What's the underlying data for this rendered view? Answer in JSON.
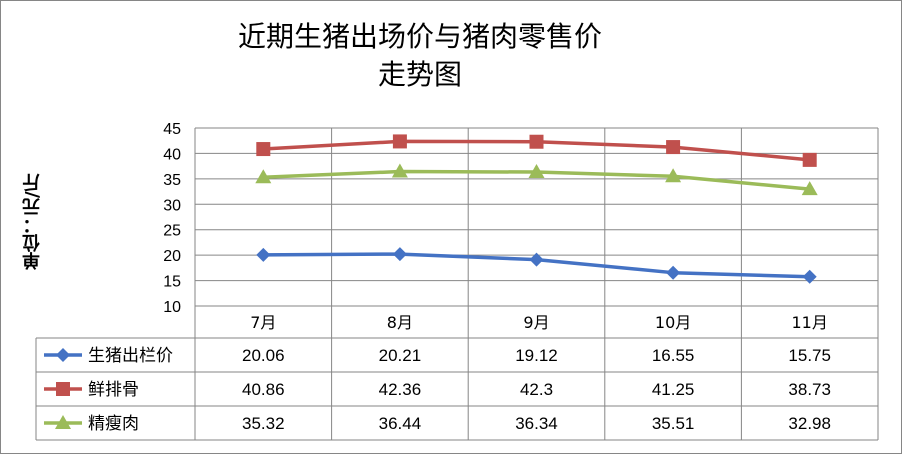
{
  "chart_data": {
    "type": "line",
    "title_lines": [
      "近期生猪出场价与猪肉零售价",
      "走势图"
    ],
    "ylabel": "单位：元/斤",
    "xlabel": "",
    "categories": [
      "7月",
      "8月",
      "9月",
      "10月",
      "11月"
    ],
    "ylim": [
      10,
      45
    ],
    "yticks": [
      10,
      15,
      20,
      25,
      30,
      35,
      40,
      45
    ],
    "grid": true,
    "legend": "data-table",
    "series": [
      {
        "name": "生猪出栏价",
        "values": [
          20.06,
          20.21,
          19.12,
          16.55,
          15.75
        ],
        "color": "#4472C4",
        "marker": "diamond"
      },
      {
        "name": "鲜排骨",
        "values": [
          40.86,
          42.36,
          42.3,
          41.25,
          38.73
        ],
        "color": "#C0504D",
        "marker": "square"
      },
      {
        "name": "精瘦肉",
        "values": [
          35.32,
          36.44,
          36.34,
          35.51,
          32.98
        ],
        "color": "#9BBB59",
        "marker": "triangle"
      }
    ]
  }
}
